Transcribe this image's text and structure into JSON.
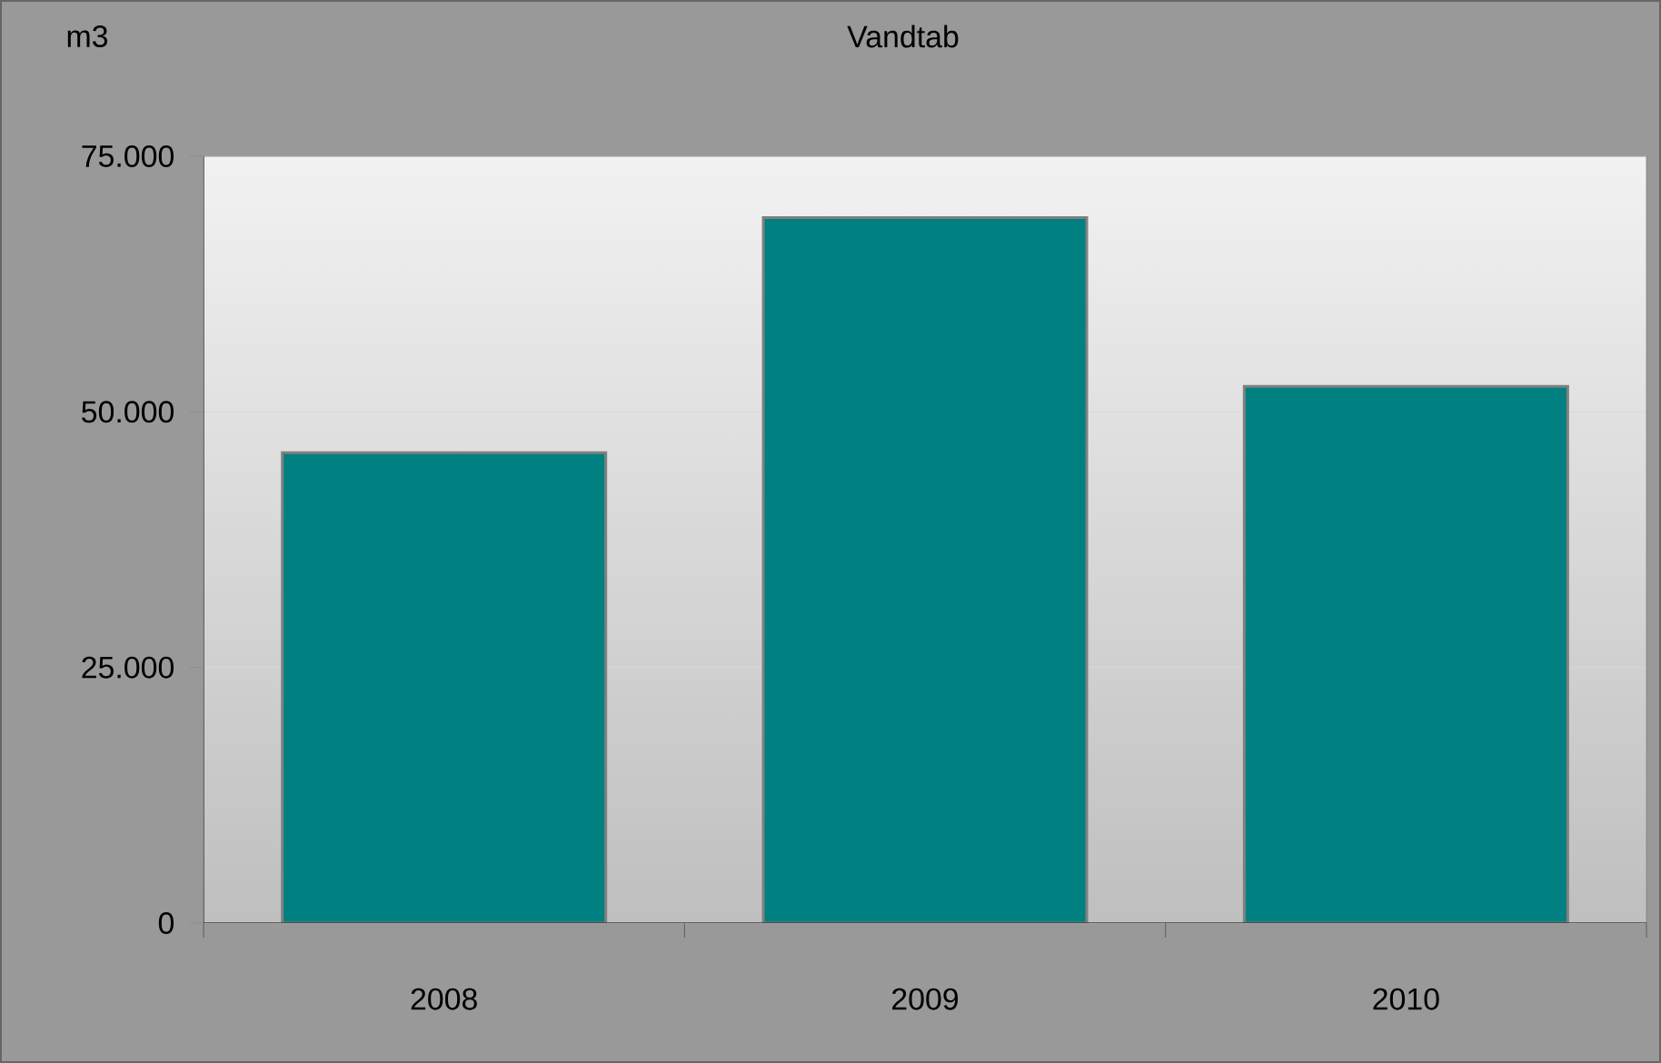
{
  "chart_data": {
    "type": "bar",
    "title": "Vandtab",
    "ylabel": "m3",
    "categories": [
      "2008",
      "2009",
      "2010"
    ],
    "values": [
      46000,
      69000,
      52500
    ],
    "color": "#008080",
    "ylim": [
      0,
      75000
    ],
    "yticks": [
      {
        "value": 0,
        "label": "0"
      },
      {
        "value": 25000,
        "label": "25.000"
      },
      {
        "value": 50000,
        "label": "50.000"
      },
      {
        "value": 75000,
        "label": "75.000"
      }
    ],
    "grid": "y"
  }
}
